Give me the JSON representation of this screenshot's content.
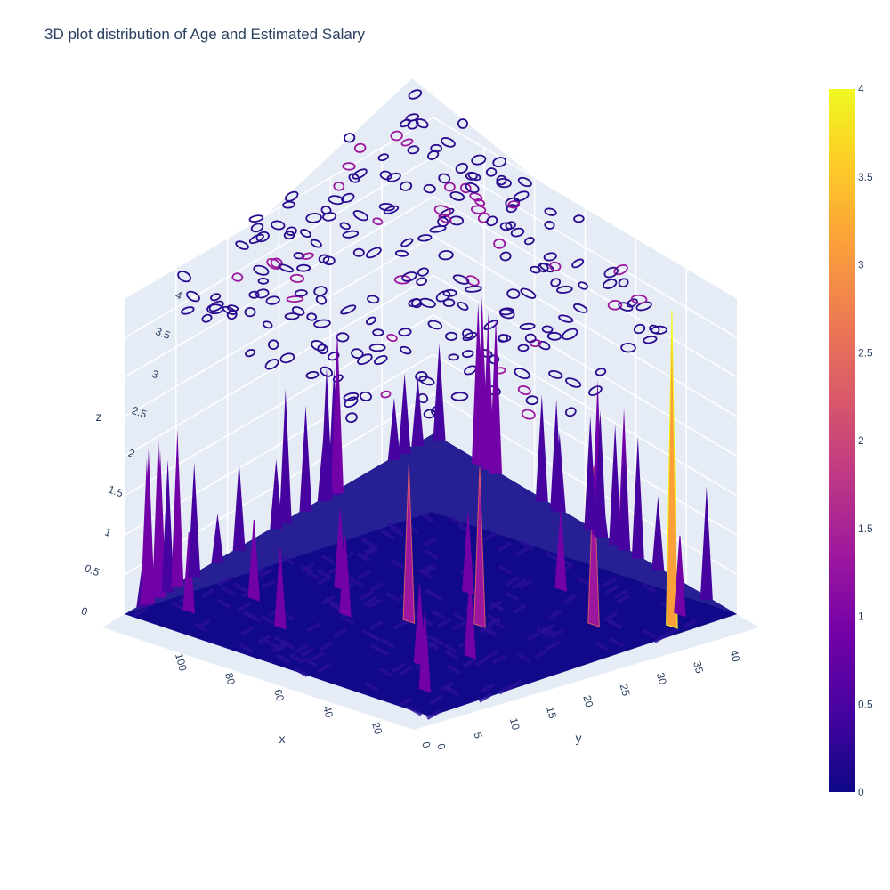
{
  "chart_data": {
    "type": "surface",
    "title": "3D plot distribution of Age and Estimated Salary",
    "axes": {
      "x": {
        "label": "x",
        "range": [
          0,
          110
        ],
        "ticks": [
          "0",
          "20",
          "40",
          "60",
          "80",
          "100"
        ],
        "tick_values": [
          0,
          20,
          40,
          60,
          80,
          100
        ]
      },
      "y": {
        "label": "y",
        "range": [
          0,
          42
        ],
        "ticks": [
          "0",
          "5",
          "10",
          "15",
          "20",
          "25",
          "30",
          "35",
          "40"
        ],
        "tick_values": [
          0,
          5,
          10,
          15,
          20,
          25,
          30,
          35,
          40
        ]
      },
      "z": {
        "label": "z",
        "range": [
          0,
          4
        ],
        "ticks": [
          "0",
          "0.5",
          "1",
          "1.5",
          "2",
          "2.5",
          "3",
          "3.5",
          "4"
        ],
        "tick_values": [
          0,
          0.5,
          1,
          1.5,
          2,
          2.5,
          3,
          3.5,
          4
        ]
      }
    },
    "colorbar": {
      "ticks": [
        "0",
        "0.5",
        "1",
        "1.5",
        "2",
        "2.5",
        "3",
        "3.5",
        "4"
      ],
      "range": [
        0,
        4
      ],
      "colorscale": [
        "#0d0887",
        "#46039f",
        "#7201a8",
        "#9c179e",
        "#bd3786",
        "#d8576b",
        "#ed7953",
        "#fb9f3a",
        "#fdca26",
        "#f0f921"
      ]
    },
    "contours_projected_on_top": true,
    "peaks": [
      {
        "x": 5,
        "y": 35,
        "z": 4.0
      },
      {
        "x": 20,
        "y": 30,
        "z": 2.0
      },
      {
        "x": 40,
        "y": 22,
        "z": 2.0
      },
      {
        "x": 55,
        "y": 18,
        "z": 2.0
      },
      {
        "x": 30,
        "y": 10,
        "z": 1.0
      },
      {
        "x": 75,
        "y": 8,
        "z": 1.0
      },
      {
        "x": 100,
        "y": 5,
        "z": 1.0
      },
      {
        "x": 95,
        "y": 12,
        "z": 1.0
      },
      {
        "x": 60,
        "y": 28,
        "z": 1.0
      },
      {
        "x": 45,
        "y": 35,
        "z": 1.0
      },
      {
        "x": 15,
        "y": 5,
        "z": 1.0
      },
      {
        "x": 10,
        "y": 38,
        "z": 1.0
      },
      {
        "x": 85,
        "y": 20,
        "z": 1.0
      },
      {
        "x": 25,
        "y": 15,
        "z": 1.0
      },
      {
        "x": 70,
        "y": 15,
        "z": 1.0
      }
    ]
  }
}
